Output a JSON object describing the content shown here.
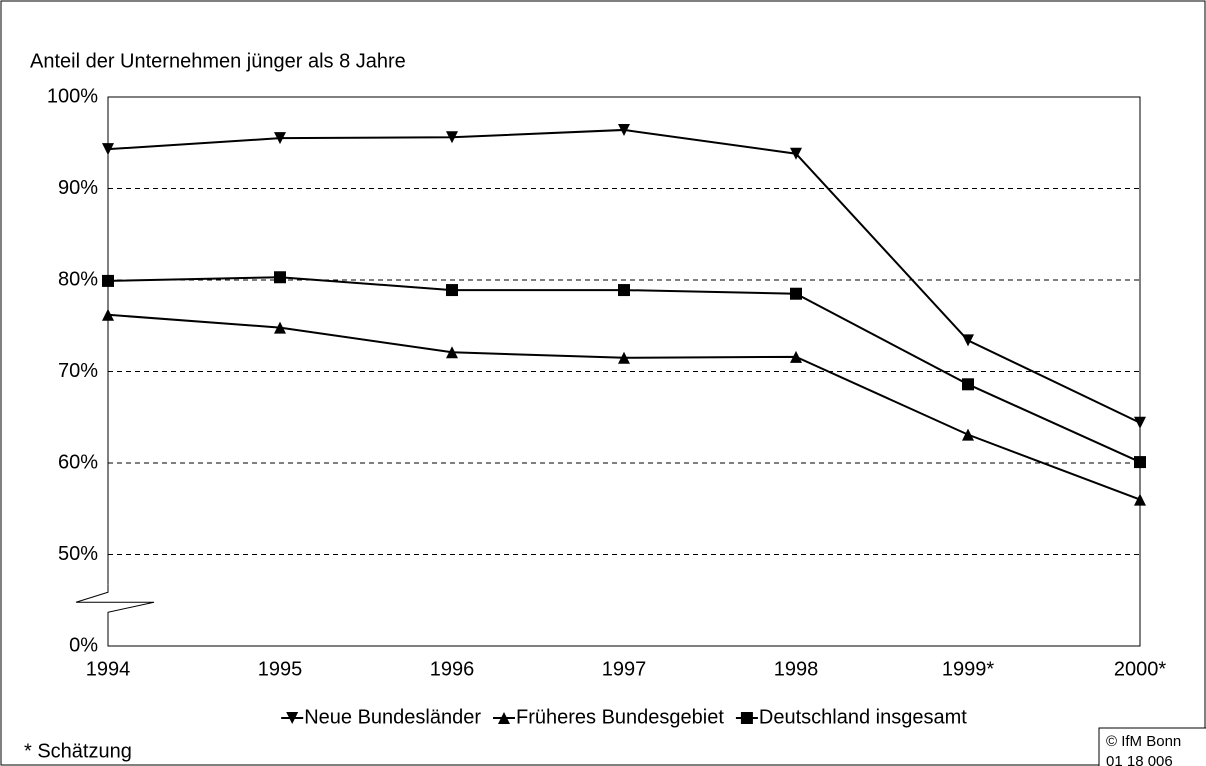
{
  "chart_data": {
    "type": "line",
    "title": "Anteil der Unternehmen jünger als 8 Jahre",
    "categories": [
      "1994",
      "1995",
      "1996",
      "1997",
      "1998",
      "1999*",
      "2000*"
    ],
    "series": [
      {
        "name": "Neue Bundesländer",
        "color": "#000000",
        "marker": "triangle-down",
        "values": [
          94.3,
          95.5,
          95.6,
          96.4,
          93.8,
          73.4,
          64.4
        ]
      },
      {
        "name": "Früheres Bundesgebiet",
        "color": "#000000",
        "marker": "triangle-up",
        "values": [
          76.2,
          74.8,
          72.1,
          71.5,
          71.6,
          63.1,
          56.0
        ]
      },
      {
        "name": "Deutschland insgesamt",
        "color": "#000000",
        "marker": "square",
        "values": [
          79.9,
          80.3,
          78.9,
          78.9,
          78.5,
          68.6,
          60.1
        ]
      }
    ],
    "ylim": [
      0,
      100
    ],
    "yticks": [
      {
        "value": 0,
        "label": "0%"
      },
      {
        "value": 50,
        "label": "50%"
      },
      {
        "value": 60,
        "label": "60%"
      },
      {
        "value": 70,
        "label": "70%"
      },
      {
        "value": 80,
        "label": "80%"
      },
      {
        "value": 90,
        "label": "90%"
      },
      {
        "value": 100,
        "label": "100%"
      }
    ],
    "axis_break": true,
    "grid": true,
    "legend": "bottom",
    "footnote": "* Schätzung",
    "source": [
      "© IfM Bonn",
      "01 18 006"
    ]
  }
}
